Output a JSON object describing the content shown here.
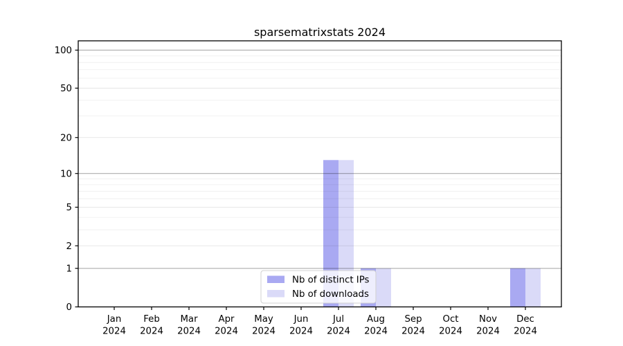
{
  "chart_data": {
    "type": "bar",
    "title": "sparsematrixstats 2024",
    "year_label": "2024",
    "categories": [
      "Jan",
      "Feb",
      "Mar",
      "Apr",
      "May",
      "Jun",
      "Jul",
      "Aug",
      "Sep",
      "Oct",
      "Nov",
      "Dec"
    ],
    "series": [
      {
        "name": "Nb of distinct IPs",
        "color": "#a9a9f2",
        "values": [
          0,
          0,
          0,
          0,
          0,
          0,
          13,
          1,
          0,
          0,
          0,
          1
        ]
      },
      {
        "name": "Nb of downloads",
        "color": "#dadaf8",
        "values": [
          0,
          0,
          0,
          0,
          0,
          0,
          13,
          1,
          0,
          0,
          0,
          1
        ]
      }
    ],
    "xlabel": "",
    "ylabel": "",
    "yscale": "log1p",
    "ylim": [
      0,
      118
    ],
    "y_ticks": [
      0,
      1,
      2,
      5,
      10,
      20,
      50,
      100
    ],
    "y_major_decades": [
      1,
      10,
      100
    ],
    "y_minor_ticks": [
      3,
      4,
      6,
      7,
      8,
      9,
      30,
      40,
      60,
      70,
      80,
      90
    ],
    "grid": "horizontal, drawn over bars",
    "legend": {
      "position": "bottom-center inside plot",
      "entries": [
        "Nb of distinct IPs",
        "Nb of downloads"
      ]
    },
    "colors": {
      "axes_frame": "#000000",
      "decade_gridline": "#b2b2b2",
      "minor_gridline": "#efefef",
      "legend_border": "#d0d0d0",
      "legend_background": "rgba(255,255,255,0.8)",
      "text": "#000000",
      "background": "#ffffff"
    }
  }
}
